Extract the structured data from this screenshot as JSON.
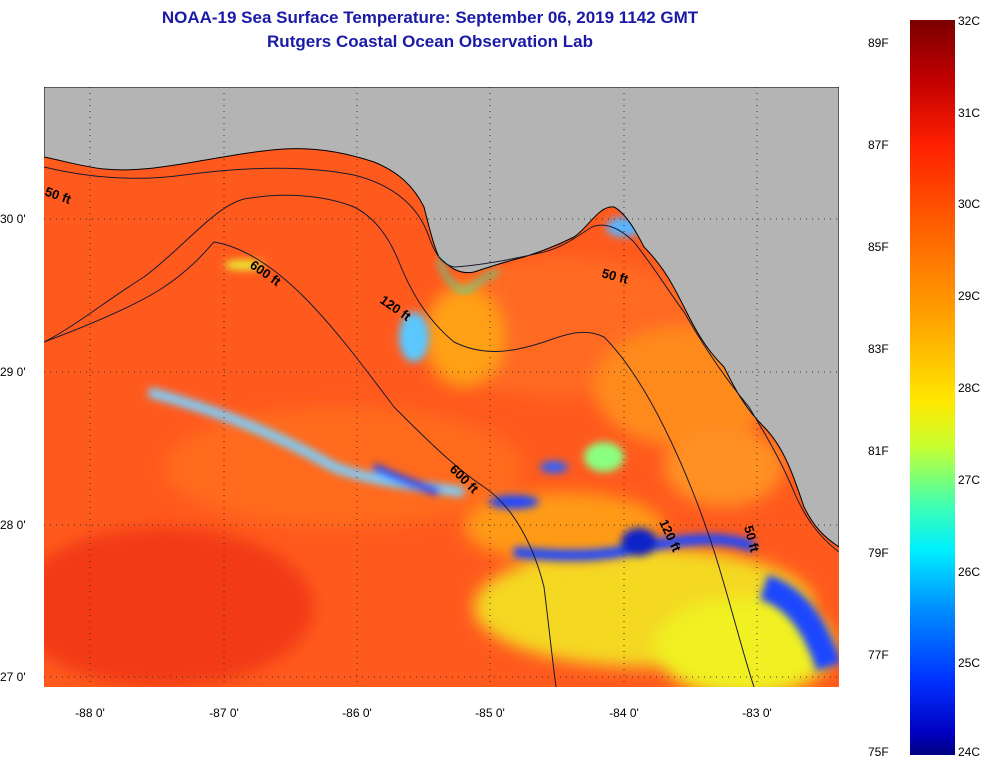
{
  "title": {
    "line1": "NOAA-19 Sea Surface Temperature:  September 06, 2019 1142 GMT",
    "line2": "Rutgers Coastal Ocean Observation Lab"
  },
  "map": {
    "lat_labels": [
      "30 0'",
      "29 0'",
      "28 0'",
      "27 0'"
    ],
    "lon_labels": [
      "-88 0'",
      "-87 0'",
      "-86 0'",
      "-85 0'",
      "-84 0'",
      "-83 0'"
    ],
    "contour_labels": [
      "50 ft",
      "600 ft",
      "120 ft",
      "50 ft",
      "600 ft",
      "120 ft",
      "50 ft"
    ],
    "colors": {
      "land": "#b4b4b4",
      "warm": "#ff5a1e",
      "cool": "#1e46ff"
    }
  },
  "colorbar": {
    "fahrenheit": [
      "89F",
      "87F",
      "85F",
      "83F",
      "81F",
      "79F",
      "77F",
      "75F"
    ],
    "celsius": [
      "32C",
      "31C",
      "30C",
      "29C",
      "28C",
      "27C",
      "26C",
      "25C",
      "24C"
    ]
  }
}
